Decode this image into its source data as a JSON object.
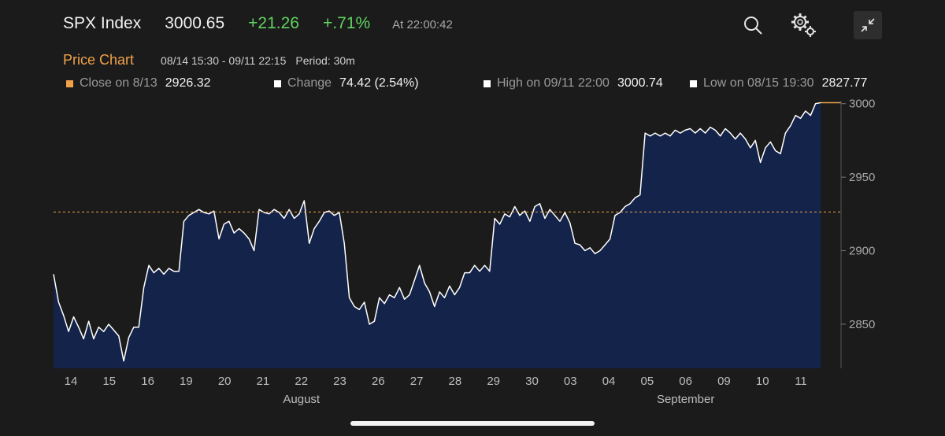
{
  "header": {
    "symbol": "SPX Index",
    "price": "3000.65",
    "change": "+21.26",
    "change_pct": "+.71%",
    "time": "At 22:00:42"
  },
  "toolbar": {
    "icons": [
      "search-icon",
      "settings-gears-icon",
      "collapse-icon"
    ]
  },
  "subheader": {
    "title": "Price Chart",
    "range": "08/14 15:30 - 09/11 22:15",
    "period": "Period: 30m"
  },
  "stats": {
    "close": {
      "label": "Close on 8/13",
      "value": "2926.32",
      "color": "#f0a24a"
    },
    "change": {
      "label": "Change",
      "value": "74.42 (2.54%)",
      "color": "#ffffff"
    },
    "high": {
      "label": "High on 09/11 22:00",
      "value": "3000.74",
      "color": "#ffffff"
    },
    "low": {
      "label": "Low on 08/15 19:30",
      "value": "2827.77",
      "color": "#ffffff"
    }
  },
  "colors": {
    "background": "#1b1b1b",
    "area_fill": "#14234a",
    "line": "#ffffff",
    "reference": "#f0a24a",
    "positive": "#5fd35f"
  },
  "chart_data": {
    "type": "area",
    "title": "",
    "xlabel": "",
    "ylabel": "",
    "ylim": [
      2820,
      3002
    ],
    "yticks": [
      2850,
      2900,
      2950,
      3000
    ],
    "reference_line": 2926.32,
    "grid": false,
    "x_tick_labels": [
      "14",
      "15",
      "16",
      "19",
      "20",
      "21",
      "22",
      "23",
      "26",
      "27",
      "28",
      "29",
      "30",
      "03",
      "04",
      "05",
      "06",
      "09",
      "10",
      "11"
    ],
    "month_labels": [
      {
        "label": "August",
        "at": "22"
      },
      {
        "label": "September",
        "at": "06"
      }
    ],
    "series": [
      {
        "values": [
          2884,
          2865,
          2856,
          2845,
          2855,
          2848,
          2840,
          2852,
          2840,
          2848,
          2845,
          2850,
          2846,
          2842,
          2825,
          2841,
          2848,
          2848,
          2875,
          2890,
          2885,
          2888,
          2884,
          2888,
          2886,
          2886,
          2920,
          2924,
          2926,
          2928,
          2926,
          2925,
          2927,
          2908,
          2918,
          2920,
          2912,
          2915,
          2912,
          2908,
          2900,
          2928,
          2926,
          2925,
          2928,
          2926,
          2922,
          2928,
          2922,
          2925,
          2934,
          2905,
          2915,
          2920,
          2926,
          2927,
          2924,
          2926,
          2905,
          2868,
          2862,
          2860,
          2865,
          2850,
          2852,
          2868,
          2864,
          2870,
          2868,
          2875,
          2867,
          2870,
          2880,
          2890,
          2878,
          2872,
          2862,
          2872,
          2868,
          2876,
          2870,
          2875,
          2885,
          2885,
          2890,
          2886,
          2890,
          2886,
          2922,
          2918,
          2925,
          2923,
          2930,
          2924,
          2927,
          2920,
          2930,
          2932,
          2922,
          2928,
          2924,
          2920,
          2926,
          2919,
          2905,
          2904,
          2900,
          2902,
          2898,
          2900,
          2904,
          2908,
          2924,
          2926,
          2930,
          2932,
          2936,
          2938,
          2980,
          2978,
          2980,
          2978,
          2980,
          2978,
          2982,
          2980,
          2982,
          2983,
          2980,
          2983,
          2980,
          2984,
          2982,
          2978,
          2983,
          2980,
          2976,
          2980,
          2976,
          2970,
          2975,
          2960,
          2970,
          2974,
          2968,
          2966,
          2980,
          2985,
          2992,
          2990,
          2995,
          2992,
          3000,
          3000.65
        ]
      }
    ]
  }
}
